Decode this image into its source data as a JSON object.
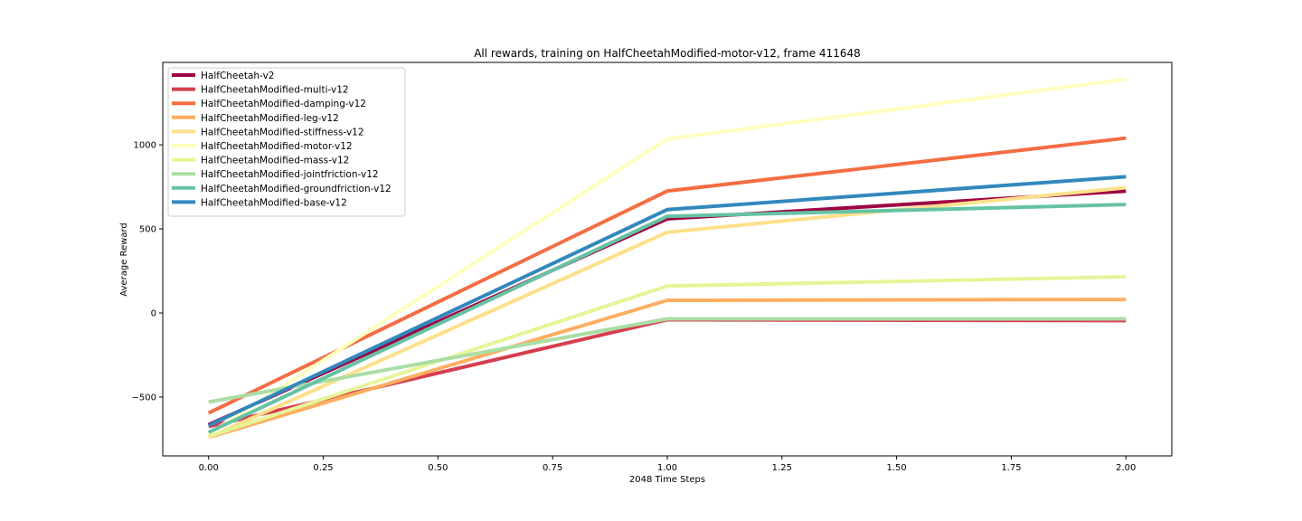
{
  "chart_data": {
    "type": "line",
    "title": "All rewards, training on HalfCheetahModified-motor-v12, frame 411648",
    "xlabel": "2048 Time Steps",
    "ylabel": "Average Reward",
    "xlim": [
      -0.1,
      2.1
    ],
    "ylim": [
      -850,
      1490
    ],
    "x_ticks": [
      0.0,
      0.25,
      0.5,
      0.75,
      1.0,
      1.25,
      1.5,
      1.75,
      2.0
    ],
    "x_tick_labels": [
      "0.00",
      "0.25",
      "0.50",
      "0.75",
      "1.00",
      "1.25",
      "1.50",
      "1.75",
      "2.00"
    ],
    "y_ticks": [
      -500,
      0,
      500,
      1000
    ],
    "y_tick_labels": [
      "−500",
      "0",
      "500",
      "1000"
    ],
    "grid": false,
    "legend_position": "top-left",
    "x": [
      0,
      1,
      2
    ],
    "series": [
      {
        "name": "HalfCheetah-v2",
        "color": "#9e0142",
        "values": [
          -665,
          560,
          725
        ]
      },
      {
        "name": "HalfCheetahModified-multi-v12",
        "color": "#d53e4f",
        "values": [
          -675,
          -40,
          -45
        ]
      },
      {
        "name": "HalfCheetahModified-damping-v12",
        "color": "#f46d43",
        "values": [
          -595,
          725,
          1040
        ]
      },
      {
        "name": "HalfCheetahModified-leg-v12",
        "color": "#fdae61",
        "values": [
          -740,
          75,
          80
        ]
      },
      {
        "name": "HalfCheetahModified-stiffness-v12",
        "color": "#fee08b",
        "values": [
          -740,
          480,
          745
        ]
      },
      {
        "name": "HalfCheetahModified-motor-v12",
        "color": "#ffffbf",
        "values": [
          -720,
          1035,
          1390
        ]
      },
      {
        "name": "HalfCheetahModified-mass-v12",
        "color": "#e6f598",
        "values": [
          -735,
          160,
          215
        ]
      },
      {
        "name": "HalfCheetahModified-jointfriction-v12",
        "color": "#abdda4",
        "values": [
          -530,
          -35,
          -35
        ]
      },
      {
        "name": "HalfCheetahModified-groundfriction-v12",
        "color": "#66c2a5",
        "values": [
          -710,
          575,
          645
        ]
      },
      {
        "name": "HalfCheetahModified-base-v12",
        "color": "#3288bd",
        "values": [
          -670,
          615,
          810
        ]
      }
    ]
  }
}
